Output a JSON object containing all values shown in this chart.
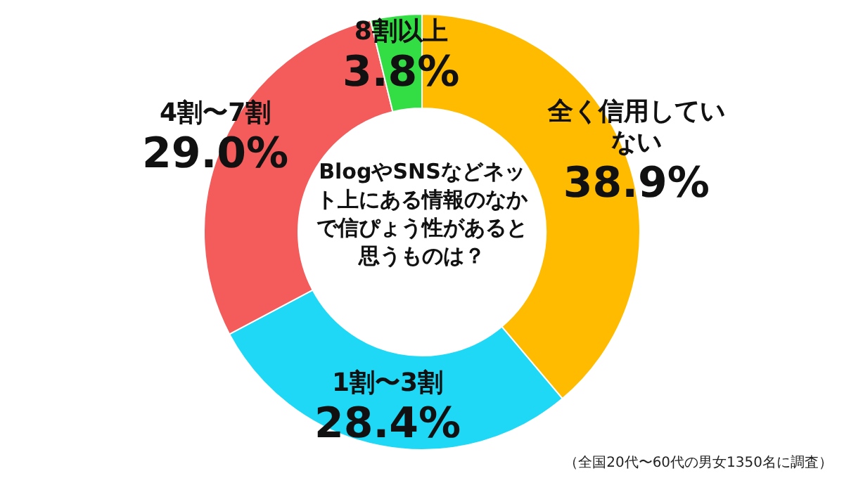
{
  "chart_data": {
    "type": "donut",
    "title": "BlogやSNSなどネット上にある情報のなかで信ぴょう性があると思うものは？",
    "categories": [
      "全く信用していない",
      "1割〜3割",
      "4割〜7割",
      "8割以上"
    ],
    "values": [
      38.9,
      28.4,
      29.0,
      3.8
    ],
    "colors": [
      "#ffbb00",
      "#1ed8f6",
      "#f45b5b",
      "#33dd44"
    ],
    "value_labels": [
      "38.9%",
      "28.4%",
      "29.0%",
      "3.8%"
    ],
    "annotations": [
      "（全国20代〜60代の男女1350名に調査）"
    ]
  }
}
